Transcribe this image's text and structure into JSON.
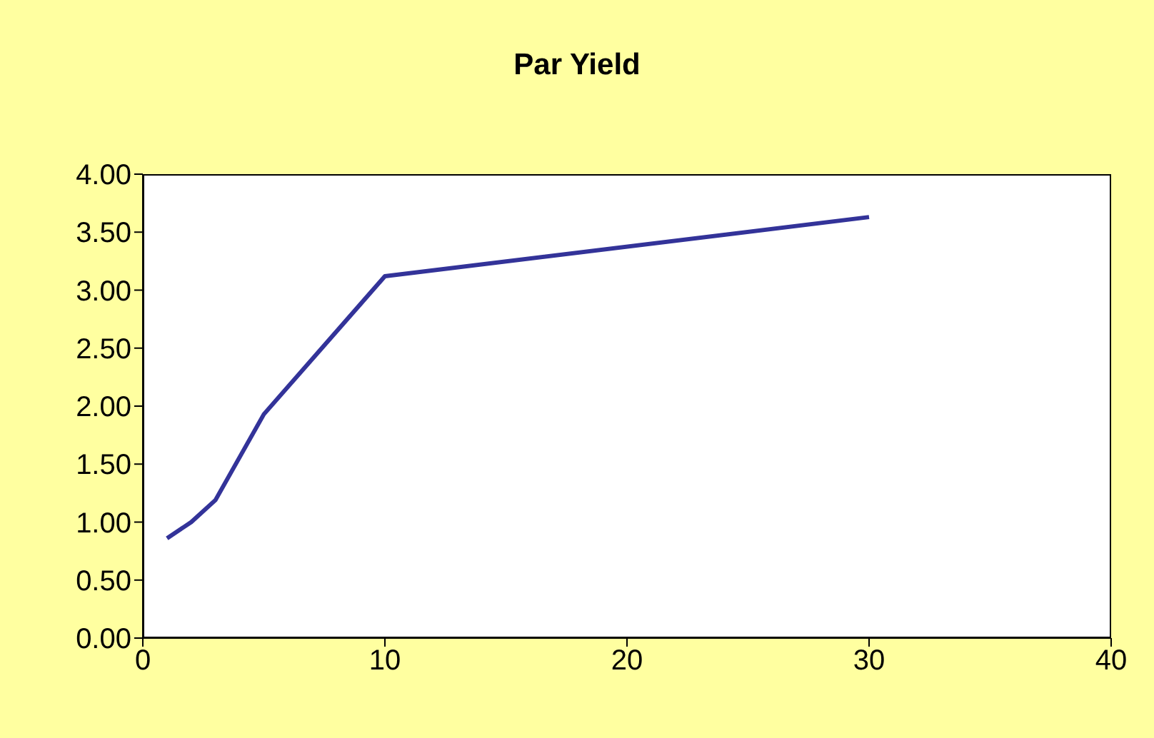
{
  "chart_data": {
    "type": "line",
    "title": "Par Yield",
    "x": [
      1,
      2,
      3,
      5,
      10,
      30
    ],
    "series": [
      {
        "color": "#333399",
        "values": [
          0.86,
          1.0,
          1.19,
          1.93,
          3.12,
          3.63
        ]
      }
    ],
    "xlim": [
      0,
      40
    ],
    "xticks": [
      0,
      10,
      20,
      30,
      40
    ],
    "ylim": [
      0,
      4
    ],
    "yticks": [
      {
        "value": 0,
        "label": "0.00"
      },
      {
        "value": 0.5,
        "label": "0.50"
      },
      {
        "value": 1,
        "label": "1.00"
      },
      {
        "value": 1.5,
        "label": "1.50"
      },
      {
        "value": 2,
        "label": "2.00"
      },
      {
        "value": 2.5,
        "label": "2.50"
      },
      {
        "value": 3,
        "label": "3.00"
      },
      {
        "value": 3.5,
        "label": "3.50"
      },
      {
        "value": 4,
        "label": "4.00"
      }
    ],
    "grid": false,
    "legend": false,
    "marker": "none",
    "line_style": "solid"
  }
}
